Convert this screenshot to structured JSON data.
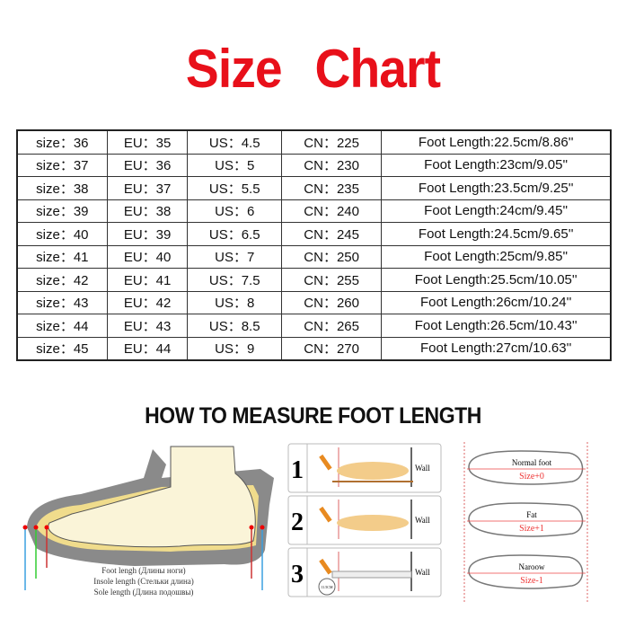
{
  "title": {
    "word1": "Size",
    "word2": "Chart",
    "color": "#e8101a"
  },
  "table": {
    "rows": [
      [
        "size：36",
        "EU：35",
        "US：4.5",
        "CN：225",
        "Foot Length:22.5cm/8.86''"
      ],
      [
        "size：37",
        "EU：36",
        "US：5",
        "CN：230",
        "Foot Length:23cm/9.05''"
      ],
      [
        "size：38",
        "EU：37",
        "US：5.5",
        "CN：235",
        "Foot Length:23.5cm/9.25''"
      ],
      [
        "size：39",
        "EU：38",
        "US：6",
        "CN：240",
        "Foot Length:24cm/9.45''"
      ],
      [
        "size：40",
        "EU：39",
        "US：6.5",
        "CN：245",
        "Foot Length:24.5cm/9.65''"
      ],
      [
        "size：41",
        "EU：40",
        "US：7",
        "CN：250",
        "Foot Length:25cm/9.85''"
      ],
      [
        "size：42",
        "EU：41",
        "US：7.5",
        "CN：255",
        "Foot Length:25.5cm/10.05''"
      ],
      [
        "size：43",
        "EU：42",
        "US：8",
        "CN：260",
        "Foot Length:26cm/10.24''"
      ],
      [
        "size：44",
        "EU：43",
        "US：8.5",
        "CN：265",
        "Foot Length:26.5cm/10.43''"
      ],
      [
        "size：45",
        "EU：44",
        "US：9",
        "CN：270",
        "Foot Length:27cm/10.63''"
      ]
    ]
  },
  "howto": "HOW TO MEASURE FOOT LENGTH",
  "shoe_diagram": {
    "foot_length": "Foot lengh (Длины ноги)",
    "insole_length": "Insole length (Стельки длина)",
    "sole_length": "Sole length (Длина подошвы)"
  },
  "steps": [
    {
      "number": "1",
      "label": "Wall"
    },
    {
      "number": "2",
      "label": "Wall"
    },
    {
      "number": "3",
      "label": "Wall",
      "ruler_reading": "11.5CM"
    }
  ],
  "foot_types": [
    {
      "name": "Normal foot",
      "size": "Size+0"
    },
    {
      "name": "Fat",
      "size": "Size+1"
    },
    {
      "name": "Naroow",
      "size": "Size-1"
    }
  ]
}
